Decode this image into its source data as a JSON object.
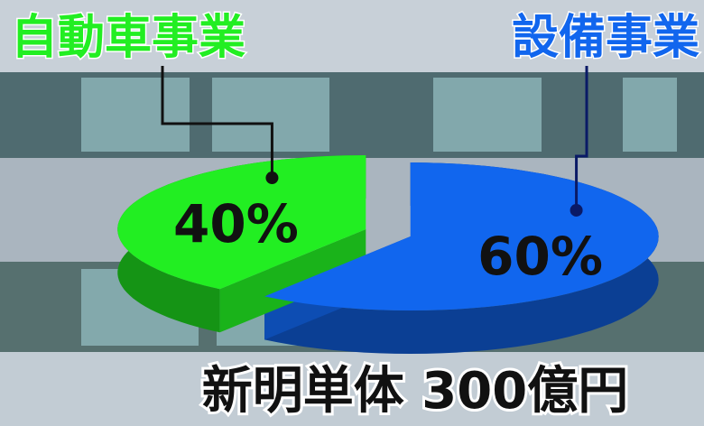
{
  "chart_data": {
    "type": "pie",
    "categories": [
      "自動車事業",
      "設備事業"
    ],
    "values": [
      40,
      60
    ],
    "value_labels": [
      "40%",
      "60%"
    ],
    "colors": [
      "#22ee22",
      "#1166ee"
    ],
    "caption": "新明単体 300億円"
  }
}
